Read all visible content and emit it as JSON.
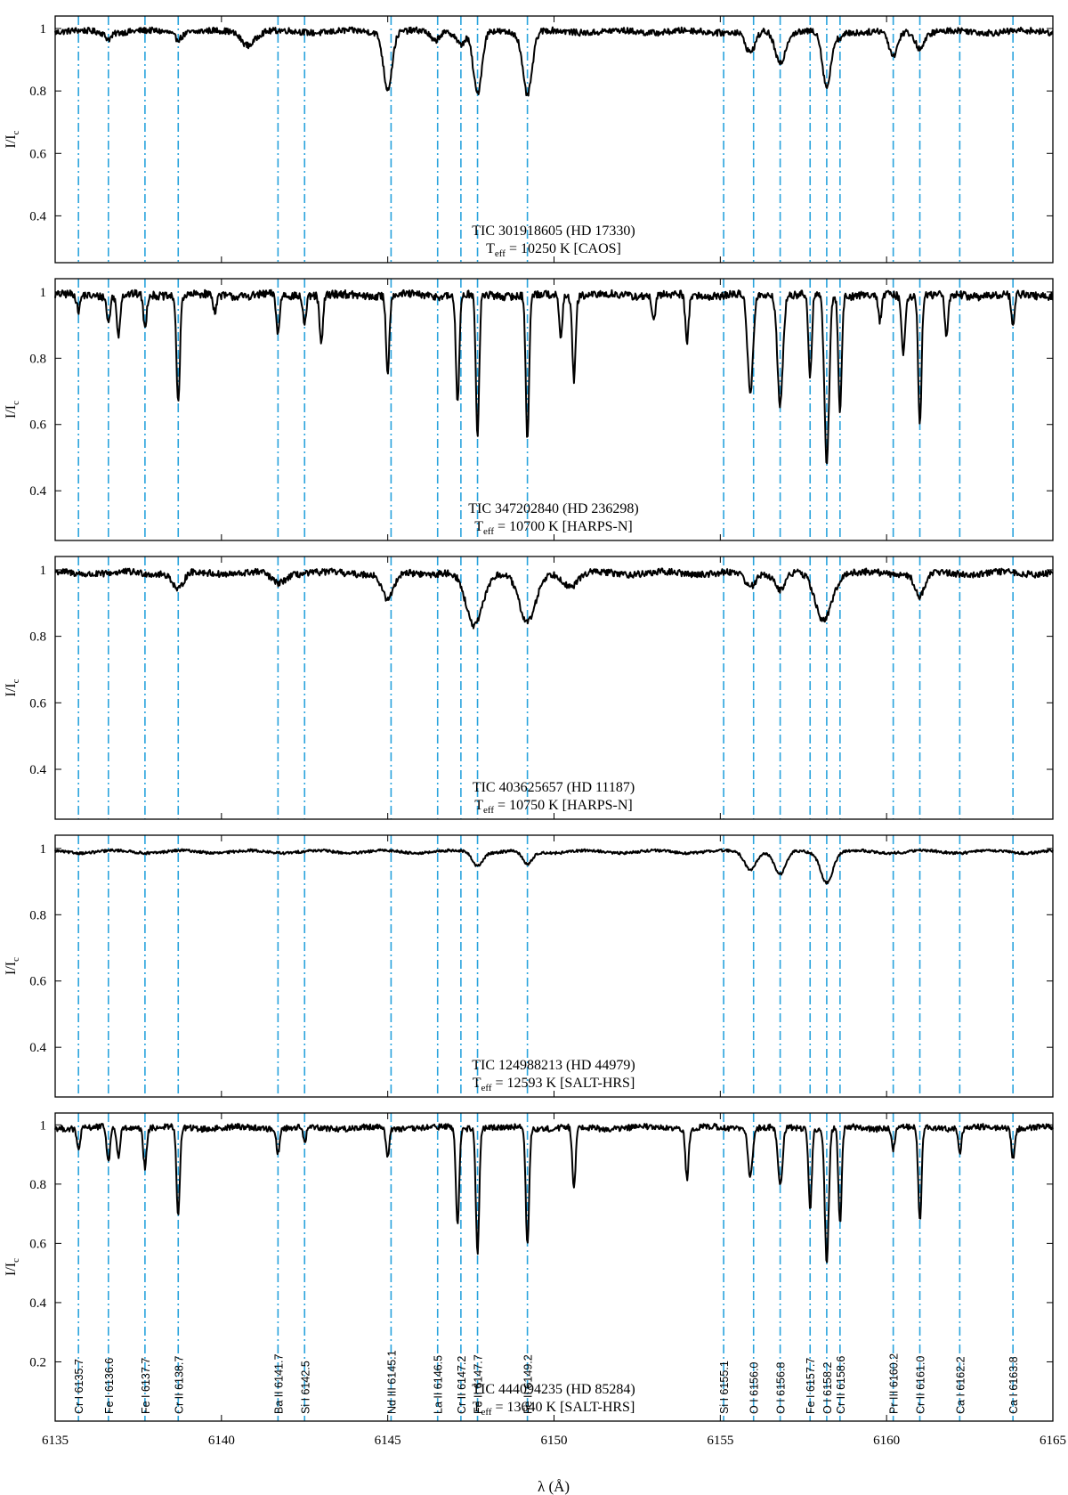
{
  "chart_data": {
    "type": "line",
    "shared_x": {
      "xlim": [
        6135,
        6165
      ],
      "ticks": [
        6135,
        6140,
        6145,
        6150,
        6155,
        6160,
        6165
      ],
      "xlabel": "λ (Å)"
    },
    "ylabel": "I/I",
    "ylabel_sub": "c",
    "line_color": "#29a3dd",
    "lines": [
      {
        "wl": 6135.7,
        "label": "Cr I 6135.7"
      },
      {
        "wl": 6136.6,
        "label": "Fe I 6136.6"
      },
      {
        "wl": 6137.7,
        "label": "Fe I 6137.7"
      },
      {
        "wl": 6138.7,
        "label": "Cr II 6138.7"
      },
      {
        "wl": 6141.7,
        "label": "Ba II 6141.7"
      },
      {
        "wl": 6142.5,
        "label": "Si I 6142.5"
      },
      {
        "wl": 6145.1,
        "label": "Nd III 6145.1"
      },
      {
        "wl": 6146.5,
        "label": "La II 6146.5"
      },
      {
        "wl": 6147.2,
        "label": "Cr II 6147.2"
      },
      {
        "wl": 6147.7,
        "label": "Fe II 6147.7"
      },
      {
        "wl": 6149.2,
        "label": "Fe II 6149.2"
      },
      {
        "wl": 6155.1,
        "label": "Si I 6155.1"
      },
      {
        "wl": 6156.0,
        "label": "O I 6156.0"
      },
      {
        "wl": 6156.8,
        "label": "O I 6156.8"
      },
      {
        "wl": 6157.7,
        "label": "Fe I 6157.7"
      },
      {
        "wl": 6158.2,
        "label": "O I 6158.2"
      },
      {
        "wl": 6158.6,
        "label": "Cr II 6158.6"
      },
      {
        "wl": 6160.2,
        "label": "Pr III 6160.2"
      },
      {
        "wl": 6161.0,
        "label": "Cr II 6161.0"
      },
      {
        "wl": 6162.2,
        "label": "Ca I 6162.2"
      },
      {
        "wl": 6163.8,
        "label": "Ca I 6163.8"
      }
    ],
    "panels": [
      {
        "title": "TIC 301918605 (HD 17330)",
        "teff_prefix": "T",
        "teff_sub": "eff",
        "teff_text": " = 10250 K [CAOS]",
        "ylim": [
          0.25,
          1.04
        ],
        "yticks": [
          0.4,
          0.6,
          0.8,
          1
        ],
        "noise": 0.01,
        "absorption": [
          [
            6136.6,
            0.02,
            0.1
          ],
          [
            6138.7,
            0.02,
            0.12
          ],
          [
            6140.8,
            0.04,
            0.2
          ],
          [
            6145.0,
            0.18,
            0.13
          ],
          [
            6146.4,
            0.03,
            0.12
          ],
          [
            6147.2,
            0.04,
            0.12
          ],
          [
            6147.7,
            0.2,
            0.13
          ],
          [
            6149.2,
            0.2,
            0.14
          ],
          [
            6155.9,
            0.07,
            0.15
          ],
          [
            6156.8,
            0.1,
            0.15
          ],
          [
            6158.2,
            0.18,
            0.13
          ],
          [
            6158.6,
            0.02,
            0.1
          ],
          [
            6160.2,
            0.08,
            0.13
          ],
          [
            6161.0,
            0.05,
            0.14
          ]
        ],
        "series": {
          "x": [
            6135,
            6165
          ],
          "y": [
            0.99,
            0.99
          ]
        }
      },
      {
        "title": "TIC 347202840 (HD 236298)",
        "teff_prefix": "T",
        "teff_sub": "eff",
        "teff_text": " = 10700 K [HARPS-N]",
        "ylim": [
          0.25,
          1.04
        ],
        "yticks": [
          0.4,
          0.6,
          0.8,
          1
        ],
        "noise": 0.012,
        "absorption": [
          [
            6135.7,
            0.05,
            0.05
          ],
          [
            6136.6,
            0.08,
            0.05
          ],
          [
            6136.9,
            0.12,
            0.05
          ],
          [
            6137.7,
            0.1,
            0.05
          ],
          [
            6138.7,
            0.33,
            0.05
          ],
          [
            6139.8,
            0.05,
            0.05
          ],
          [
            6141.7,
            0.12,
            0.05
          ],
          [
            6142.5,
            0.08,
            0.05
          ],
          [
            6143.0,
            0.15,
            0.05
          ],
          [
            6145.0,
            0.23,
            0.05
          ],
          [
            6147.1,
            0.33,
            0.05
          ],
          [
            6147.7,
            0.43,
            0.05
          ],
          [
            6149.2,
            0.44,
            0.05
          ],
          [
            6150.2,
            0.12,
            0.05
          ],
          [
            6150.6,
            0.25,
            0.05
          ],
          [
            6153.0,
            0.08,
            0.05
          ],
          [
            6154.0,
            0.14,
            0.05
          ],
          [
            6155.9,
            0.3,
            0.08
          ],
          [
            6156.8,
            0.33,
            0.08
          ],
          [
            6157.7,
            0.25,
            0.05
          ],
          [
            6158.2,
            0.51,
            0.07
          ],
          [
            6158.6,
            0.35,
            0.05
          ],
          [
            6159.8,
            0.08,
            0.05
          ],
          [
            6160.5,
            0.18,
            0.05
          ],
          [
            6161.0,
            0.39,
            0.05
          ],
          [
            6161.8,
            0.13,
            0.05
          ],
          [
            6163.8,
            0.09,
            0.05
          ]
        ],
        "series": {
          "x": [
            6135,
            6165
          ],
          "y": [
            0.98,
            0.98
          ]
        }
      },
      {
        "title": "TIC 403625657 (HD 11187)",
        "teff_prefix": "T",
        "teff_sub": "eff",
        "teff_text": " = 10750 K [HARPS-N]",
        "ylim": [
          0.25,
          1.04
        ],
        "yticks": [
          0.4,
          0.6,
          0.8,
          1
        ],
        "noise": 0.01,
        "absorption": [
          [
            6138.7,
            0.05,
            0.15
          ],
          [
            6141.7,
            0.03,
            0.2
          ],
          [
            6145.0,
            0.08,
            0.18
          ],
          [
            6147.6,
            0.16,
            0.25
          ],
          [
            6149.2,
            0.15,
            0.25
          ],
          [
            6150.5,
            0.04,
            0.2
          ],
          [
            6155.9,
            0.04,
            0.15
          ],
          [
            6156.8,
            0.05,
            0.15
          ],
          [
            6158.1,
            0.14,
            0.25
          ],
          [
            6161.0,
            0.07,
            0.15
          ]
        ],
        "series": {
          "x": [
            6135,
            6165
          ],
          "y": [
            0.99,
            0.99
          ]
        }
      },
      {
        "title": "TIC 124988213 (HD 44979)",
        "teff_prefix": "T",
        "teff_sub": "eff",
        "teff_text": " = 12593 K [SALT-HRS]",
        "ylim": [
          0.25,
          1.04
        ],
        "yticks": [
          0.4,
          0.6,
          0.8,
          1
        ],
        "noise": 0.004,
        "absorption": [
          [
            6147.7,
            0.04,
            0.15
          ],
          [
            6149.2,
            0.04,
            0.15
          ],
          [
            6155.9,
            0.05,
            0.17
          ],
          [
            6156.8,
            0.07,
            0.17
          ],
          [
            6158.2,
            0.09,
            0.18
          ]
        ],
        "series": {
          "x": [
            6135,
            6165
          ],
          "y": [
            1.0,
            1.0
          ]
        }
      },
      {
        "title": "TIC 444094235 (HD 85284)",
        "teff_prefix": "T",
        "teff_sub": "eff",
        "teff_text": " = 13640 K [SALT-HRS]",
        "ylim": [
          0.0,
          1.04
        ],
        "yticks": [
          0.2,
          0.4,
          0.6,
          0.8,
          1
        ],
        "noise": 0.01,
        "absorption": [
          [
            6135.7,
            0.07,
            0.05
          ],
          [
            6136.6,
            0.12,
            0.05
          ],
          [
            6136.9,
            0.1,
            0.05
          ],
          [
            6137.7,
            0.13,
            0.05
          ],
          [
            6138.7,
            0.3,
            0.05
          ],
          [
            6141.7,
            0.08,
            0.05
          ],
          [
            6142.5,
            0.05,
            0.05
          ],
          [
            6145.0,
            0.1,
            0.05
          ],
          [
            6147.1,
            0.33,
            0.05
          ],
          [
            6147.7,
            0.42,
            0.05
          ],
          [
            6149.2,
            0.4,
            0.05
          ],
          [
            6150.6,
            0.2,
            0.05
          ],
          [
            6154.0,
            0.17,
            0.05
          ],
          [
            6155.9,
            0.16,
            0.07
          ],
          [
            6156.8,
            0.2,
            0.07
          ],
          [
            6157.7,
            0.27,
            0.05
          ],
          [
            6158.2,
            0.45,
            0.06
          ],
          [
            6158.6,
            0.33,
            0.05
          ],
          [
            6160.2,
            0.07,
            0.05
          ],
          [
            6161.0,
            0.32,
            0.05
          ],
          [
            6162.2,
            0.08,
            0.05
          ],
          [
            6163.8,
            0.1,
            0.05
          ]
        ],
        "series": {
          "x": [
            6135,
            6165
          ],
          "y": [
            0.99,
            0.99
          ]
        }
      }
    ]
  }
}
